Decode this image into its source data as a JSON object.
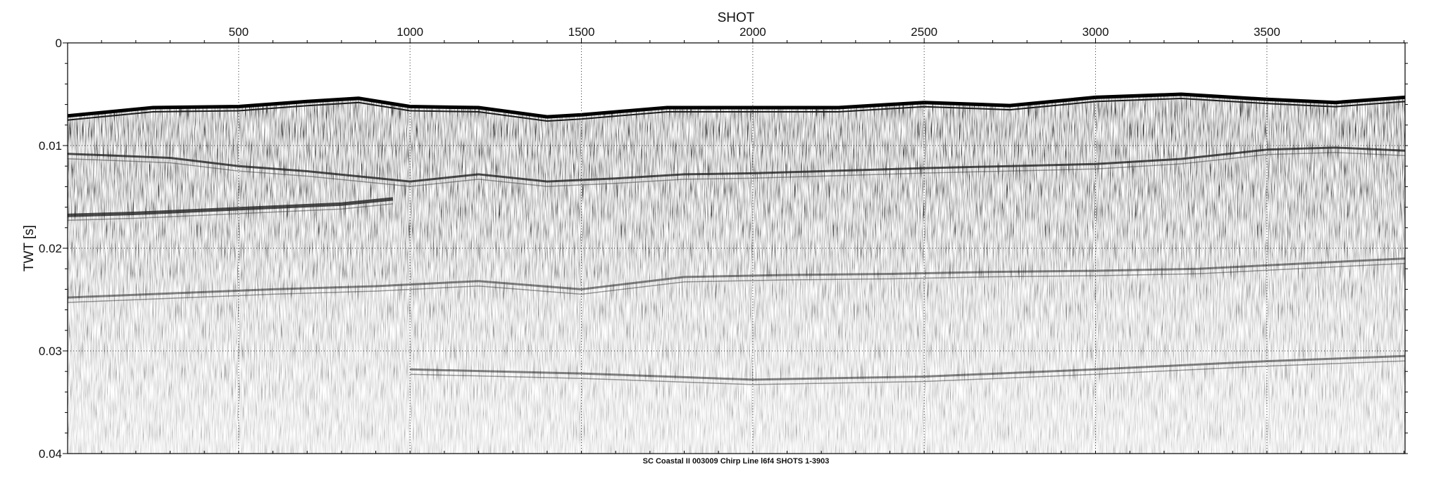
{
  "chart_data": {
    "type": "heatmap",
    "title": "",
    "caption": "SC Coastal II 003009 Chirp Line l6f4 SHOTS 1-3903",
    "xlabel": "SHOT",
    "ylabel": "TWT [s]",
    "xlim": [
      1,
      3903
    ],
    "ylim": [
      0,
      0.04
    ],
    "y_inverted": true,
    "x_ticks": [
      500,
      1000,
      1500,
      2000,
      2500,
      3000,
      3500
    ],
    "x_tick_labels": [
      "500",
      "1000",
      "1500",
      "2000",
      "2500",
      "3000",
      "3500"
    ],
    "y_ticks": [
      0,
      0.01,
      0.02,
      0.03,
      0.04
    ],
    "y_tick_labels": [
      "0",
      "0.01",
      "0.02",
      "0.03",
      "0.04"
    ],
    "grid": "dotted",
    "colormap": "grayscale seismic amplitude",
    "seafloor_reflector": {
      "shots": [
        1,
        250,
        500,
        700,
        850,
        1000,
        1200,
        1400,
        1500,
        1750,
        2000,
        2250,
        2500,
        2750,
        3000,
        3250,
        3500,
        3700,
        3903
      ],
      "twt": [
        0.0071,
        0.0063,
        0.0062,
        0.0057,
        0.0054,
        0.0062,
        0.0063,
        0.0072,
        0.007,
        0.0063,
        0.0063,
        0.0063,
        0.0058,
        0.0061,
        0.0053,
        0.005,
        0.0055,
        0.0058,
        0.0053
      ]
    },
    "subsurface_reflectors": [
      {
        "shots": [
          1,
          300,
          500,
          700,
          850,
          1000,
          1200,
          1400,
          1600,
          1800,
          2000,
          2200,
          2500,
          2750,
          3000,
          3250,
          3500,
          3700,
          3903
        ],
        "twt": [
          0.0108,
          0.0112,
          0.012,
          0.0125,
          0.013,
          0.0135,
          0.0128,
          0.0135,
          0.0132,
          0.0128,
          0.0127,
          0.0125,
          0.0122,
          0.012,
          0.0118,
          0.0113,
          0.0104,
          0.0102,
          0.0105
        ]
      },
      {
        "shots": [
          1,
          200,
          400,
          600,
          800,
          950
        ],
        "twt": [
          0.0168,
          0.0166,
          0.0163,
          0.016,
          0.0157,
          0.0152
        ]
      },
      {
        "shots": [
          1,
          300,
          600,
          900,
          1200,
          1500,
          1800,
          2100,
          2400,
          2700,
          3000,
          3300,
          3600,
          3903
        ],
        "twt": [
          0.0248,
          0.0244,
          0.024,
          0.0237,
          0.0232,
          0.024,
          0.0228,
          0.0226,
          0.0225,
          0.0223,
          0.0222,
          0.022,
          0.0215,
          0.021
        ]
      },
      {
        "shots": [
          1000,
          1500,
          2000,
          2500,
          3000,
          3500,
          3903
        ],
        "twt": [
          0.0318,
          0.0322,
          0.0328,
          0.0325,
          0.0318,
          0.031,
          0.0305
        ]
      }
    ]
  }
}
